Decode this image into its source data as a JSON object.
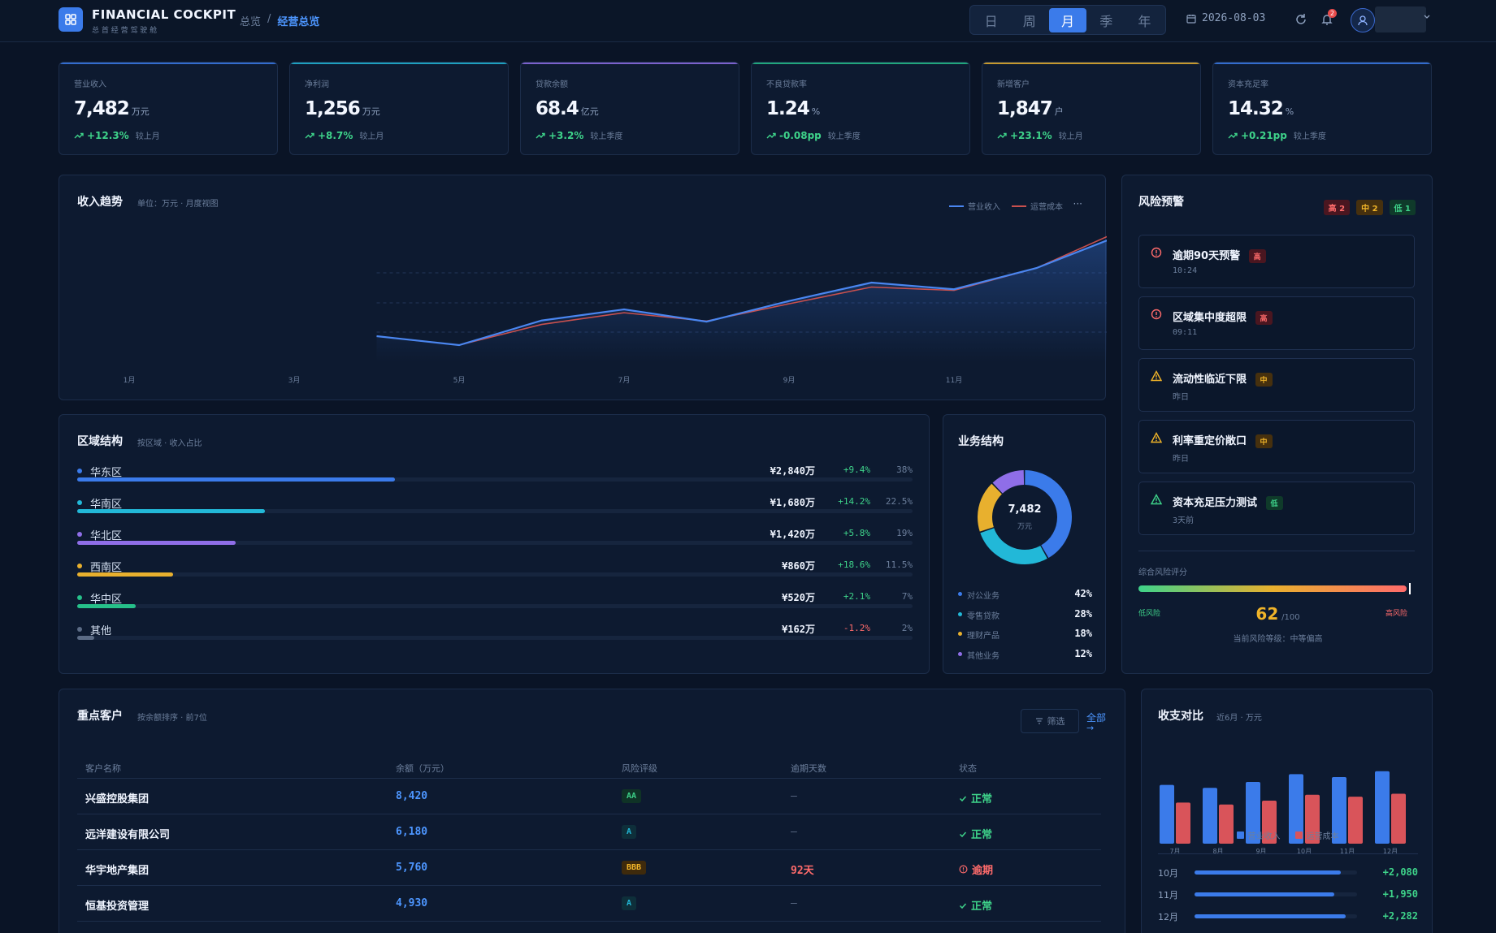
{
  "app": {
    "title": "FINANCIAL COCKPIT",
    "subtitle": "总 首 经 营 驾 驶 舱"
  },
  "breadcrumb": {
    "parent": "总览",
    "separator": "/",
    "current": "经营总览"
  },
  "period": {
    "options": [
      "日",
      "周",
      "月",
      "季",
      "年"
    ],
    "selected": "月"
  },
  "date": "2026-08-03",
  "notifications": {
    "count": "2"
  },
  "kpis": [
    {
      "label": "营业收入",
      "value": "7,482",
      "unit": "万元",
      "delta": "+12.3%",
      "compare": "较上月",
      "color": "#3b7bea"
    },
    {
      "label": "净利润",
      "value": "1,256",
      "unit": "万元",
      "delta": "+8.7%",
      "compare": "较上月",
      "color": "#22b8d8"
    },
    {
      "label": "贷款余额",
      "value": "68.4",
      "unit": "亿元",
      "delta": "+3.2%",
      "compare": "较上季度",
      "color": "#8f6ee8"
    },
    {
      "label": "不良贷款率",
      "value": "1.24",
      "unit": "%",
      "delta": "-0.08pp",
      "compare": "较上季度",
      "color": "#26c08a"
    },
    {
      "label": "新增客户",
      "value": "1,847",
      "unit": "户",
      "delta": "+23.1%",
      "compare": "较上月",
      "color": "#e8b02e"
    },
    {
      "label": "资本充足率",
      "value": "14.32",
      "unit": "%",
      "delta": "+0.21pp",
      "compare": "较上季度",
      "color": "#3b7bea"
    }
  ],
  "trend": {
    "title": "收入趋势",
    "subtitle": "单位：万元 · 月度视图",
    "legend": [
      "营业收入",
      "运营成本"
    ],
    "more": "···",
    "chart_data": {
      "type": "line",
      "x_ticks": [
        "1月",
        "3月",
        "5月",
        "7月",
        "9月",
        "11月"
      ],
      "x": [
        4,
        5,
        6,
        7,
        8,
        9,
        10,
        11,
        12,
        13,
        14,
        15
      ],
      "series": [
        {
          "name": "营业收入",
          "color": "#4a86f0",
          "values": [
            5120,
            4960,
            5400,
            5600,
            5380,
            5750,
            6080,
            5960,
            6340,
            6920,
            6740,
            7000
          ]
        },
        {
          "name": "运营成本",
          "color": "#c8504e",
          "values": [
            5120,
            4960,
            5330,
            5540,
            5390,
            5700,
            6000,
            5940,
            6340,
            7000,
            6840,
            7020
          ]
        }
      ],
      "ylim": [
        4800,
        7200
      ]
    }
  },
  "region": {
    "title": "区域结构",
    "subtitle": "按区域 · 收入占比",
    "rows": [
      {
        "name": "华东区",
        "amount": "¥2,840万",
        "change": "+9.4%",
        "pct": "38%",
        "share": 0.38,
        "color": "#3b7bea",
        "up": true
      },
      {
        "name": "华南区",
        "amount": "¥1,680万",
        "change": "+14.2%",
        "pct": "22.5%",
        "share": 0.225,
        "color": "#22b8d8",
        "up": true
      },
      {
        "name": "华北区",
        "amount": "¥1,420万",
        "change": "+5.8%",
        "pct": "19%",
        "share": 0.19,
        "color": "#8f6ee8",
        "up": true
      },
      {
        "name": "西南区",
        "amount": "¥860万",
        "change": "+18.6%",
        "pct": "11.5%",
        "share": 0.115,
        "color": "#e8b02e",
        "up": true
      },
      {
        "name": "华中区",
        "amount": "¥520万",
        "change": "+2.1%",
        "pct": "7%",
        "share": 0.07,
        "color": "#26c08a",
        "up": true
      },
      {
        "name": "其他",
        "amount": "¥162万",
        "change": "-1.2%",
        "pct": "2%",
        "share": 0.02,
        "color": "#5b6b85",
        "up": false
      }
    ]
  },
  "business": {
    "title": "业务结构",
    "center_value": "7,482",
    "center_unit": "万元",
    "chart_data": {
      "type": "pie",
      "slices": [
        {
          "label": "对公业务",
          "value": 42,
          "display": "42%",
          "color": "#3b7bea"
        },
        {
          "label": "零售贷款",
          "value": 28,
          "display": "28%",
          "color": "#22b8d8"
        },
        {
          "label": "理财产品",
          "value": 18,
          "display": "18%",
          "color": "#e8b02e"
        },
        {
          "label": "其他业务",
          "value": 12,
          "display": "12%",
          "color": "#8f6ee8"
        }
      ]
    }
  },
  "risk": {
    "title": "风险预警",
    "counts": [
      {
        "label": "高 2",
        "level": "high"
      },
      {
        "label": "中 2",
        "level": "mid"
      },
      {
        "label": "低 1",
        "level": "low"
      }
    ],
    "items": [
      {
        "title": "逾期90天预警",
        "level": "高",
        "cls": "high",
        "time": "10:24",
        "icon": "alert-circle-icon"
      },
      {
        "title": "区域集中度超限",
        "level": "高",
        "cls": "high",
        "time": "09:11",
        "icon": "alert-circle-icon"
      },
      {
        "title": "流动性临近下限",
        "level": "中",
        "cls": "mid",
        "time": "昨日",
        "icon": "warning-triangle-icon"
      },
      {
        "title": "利率重定价敞口",
        "level": "中",
        "cls": "mid",
        "time": "昨日",
        "icon": "warning-triangle-icon"
      },
      {
        "title": "资本充足压力测试",
        "level": "低",
        "cls": "low",
        "time": "3天前",
        "icon": "warning-triangle-icon"
      }
    ],
    "score_label": "综合风险评分",
    "score_value": "62",
    "score_max": "/100",
    "score_fraction": 0.62,
    "low_label": "低风险",
    "high_label": "高风险",
    "level_text": "当前风险等级：中等偏高"
  },
  "clients": {
    "title": "重点客户",
    "subtitle": "按余额排序 · 前7位",
    "filter_label": "筛选",
    "all_label": "全部",
    "columns": [
      "客户名称",
      "余额（万元）",
      "风险评级",
      "逾期天数",
      "状态"
    ],
    "rows": [
      {
        "name": "兴盛控股集团",
        "balance": "8,420",
        "rating": "AA",
        "rating_cls": "aa",
        "overdue": "—",
        "status": "正常",
        "ok": true
      },
      {
        "name": "远洋建设有限公司",
        "balance": "6,180",
        "rating": "A",
        "rating_cls": "a",
        "overdue": "—",
        "status": "正常",
        "ok": true
      },
      {
        "name": "华宇地产集团",
        "balance": "5,760",
        "rating": "BBB",
        "rating_cls": "bbb",
        "overdue": "92天",
        "status": "逾期",
        "ok": false
      },
      {
        "name": "恒基投资管理",
        "balance": "4,930",
        "rating": "A",
        "rating_cls": "a",
        "overdue": "—",
        "status": "正常",
        "ok": true
      },
      {
        "name": "",
        "balance": "",
        "rating": "",
        "rating_cls": "a",
        "overdue": "",
        "status": "",
        "ok": true
      }
    ]
  },
  "compare": {
    "title": "收支对比",
    "subtitle": "近6月 · 万元",
    "chart_data": {
      "type": "bar",
      "categories": [
        "7月",
        "8月",
        "9月",
        "10月",
        "11月",
        "12月"
      ],
      "series": [
        {
          "name": "营业收入",
          "color": "#3b7bea",
          "values": [
            6000,
            5700,
            6300,
            7100,
            6800,
            7400
          ]
        },
        {
          "name": "运营成本",
          "color": "#d9545a",
          "values": [
            4200,
            4000,
            4400,
            5000,
            4800,
            5100
          ]
        }
      ],
      "ylim": [
        0,
        8000
      ]
    },
    "net_rows": [
      {
        "label": "10月",
        "value": "+2,080",
        "fraction": 0.9
      },
      {
        "label": "11月",
        "value": "+1,950",
        "fraction": 0.86
      },
      {
        "label": "12月",
        "value": "+2,282",
        "fraction": 0.93
      }
    ]
  }
}
